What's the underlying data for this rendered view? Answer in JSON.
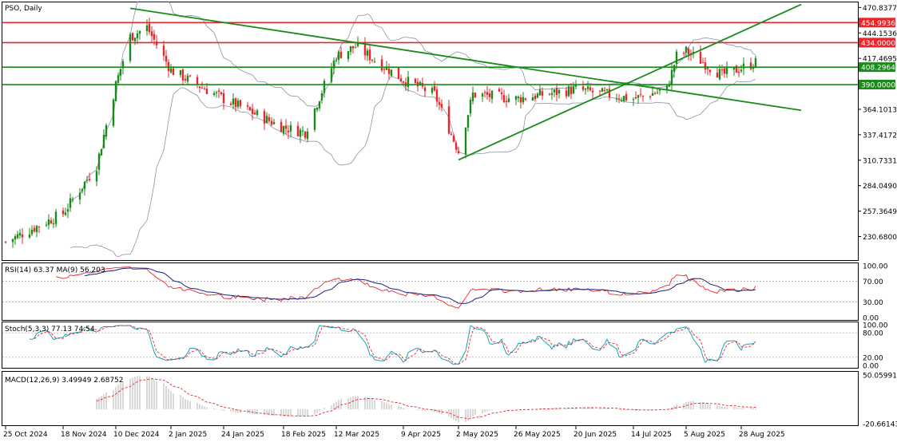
{
  "chart_title": "PSO, Daily",
  "price_axis_ticks": [
    "470.8377",
    "444.1536",
    "417.4695",
    "364.1013",
    "337.4172",
    "310.7331",
    "284.0490",
    "257.3649",
    "230.6800"
  ],
  "level_tags": [
    {
      "label": "454.9936",
      "value": 454.9936,
      "color": "#e8262b",
      "kind": "line"
    },
    {
      "label": "434.0000",
      "value": 434.0,
      "color": "#e8262b",
      "kind": "line"
    },
    {
      "label": "408.2964",
      "value": 408.2964,
      "color": "#1a8a1a",
      "kind": "line"
    },
    {
      "label": "390.0000",
      "value": 390.0,
      "color": "#1a8a1a",
      "kind": "line"
    }
  ],
  "date_labels": [
    "25 Oct 2024",
    "18 Nov 2024",
    "10 Dec 2024",
    "2 Jan 2025",
    "24 Jan 2025",
    "18 Feb 2025",
    "12 Mar 2025",
    "9 Apr 2025",
    "2 May 2025",
    "26 May 2025",
    "20 Jun 2025",
    "14 Jul 2025",
    "5 Aug 2025",
    "28 Aug 2025"
  ],
  "colors": {
    "bull": "#1a8a1a",
    "bear": "#e8262b",
    "band": "#8a92a6",
    "trend": "#1a8a1a",
    "rsi": "#e8262b",
    "rsi_ma": "#1a237e",
    "stoch_main": "#17a2b8",
    "stoch_signal": "#e8262b",
    "macd_hist": "#b0b0b0",
    "macd_signal": "#e8262b"
  },
  "rsi": {
    "label": "RSI(14) 63.37 MA(9) 56.203",
    "ticks": [
      "100.00",
      "70.00",
      "30.00",
      "0.00"
    ]
  },
  "stoch": {
    "label": "Stoch(5,3,3) 77.13 74.54",
    "ticks": [
      "100.00",
      "80.00",
      "20.00",
      "0.00"
    ]
  },
  "macd": {
    "label": "MACD(12,26,9) 3.49949 2.68752",
    "ticks": [
      "50.05991",
      "-20.66143"
    ]
  },
  "chart_data": {
    "type": "candlestick",
    "symbol": "PSO",
    "timeframe": "Daily",
    "ylim": [
      206,
      477
    ],
    "close_path": [
      {
        "date": "2024-10-25",
        "close": 225
      },
      {
        "date": "2024-11-18",
        "close": 255
      },
      {
        "date": "2024-12-02",
        "close": 305
      },
      {
        "date": "2024-12-10",
        "close": 390
      },
      {
        "date": "2024-12-16",
        "close": 440
      },
      {
        "date": "2024-12-23",
        "close": 450
      },
      {
        "date": "2025-01-02",
        "close": 405
      },
      {
        "date": "2025-01-24",
        "close": 375
      },
      {
        "date": "2025-02-18",
        "close": 345
      },
      {
        "date": "2025-02-27",
        "close": 340
      },
      {
        "date": "2025-03-12",
        "close": 420
      },
      {
        "date": "2025-03-20",
        "close": 430
      },
      {
        "date": "2025-04-09",
        "close": 395
      },
      {
        "date": "2025-04-22",
        "close": 380
      },
      {
        "date": "2025-05-02",
        "close": 320
      },
      {
        "date": "2025-05-08",
        "close": 380
      },
      {
        "date": "2025-05-26",
        "close": 375
      },
      {
        "date": "2025-06-20",
        "close": 385
      },
      {
        "date": "2025-07-14",
        "close": 375
      },
      {
        "date": "2025-07-28",
        "close": 385
      },
      {
        "date": "2025-08-01",
        "close": 420
      },
      {
        "date": "2025-08-05",
        "close": 425
      },
      {
        "date": "2025-08-20",
        "close": 400
      },
      {
        "date": "2025-09-03",
        "close": 413
      }
    ],
    "horizontal_levels": [
      454.9936,
      434.0,
      408.2964,
      390.0
    ],
    "trendlines": [
      {
        "name": "descending",
        "from": {
          "date": "2024-12-16",
          "price": 470
        },
        "to": {
          "date": "2025-09-22",
          "price": 363
        }
      },
      {
        "name": "ascending",
        "from": {
          "date": "2025-05-02",
          "price": 311
        },
        "to": {
          "date": "2025-09-22",
          "price": 474
        }
      }
    ],
    "indicators": {
      "rsi": {
        "period": 14,
        "value": 63.37,
        "ma_period": 9,
        "ma_value": 56.203
      },
      "stochastic": {
        "params": [
          5,
          3,
          3
        ],
        "main": 77.13,
        "signal": 74.54
      },
      "macd": {
        "params": [
          12,
          26,
          9
        ],
        "main": 3.49949,
        "signal": 2.68752
      }
    }
  }
}
